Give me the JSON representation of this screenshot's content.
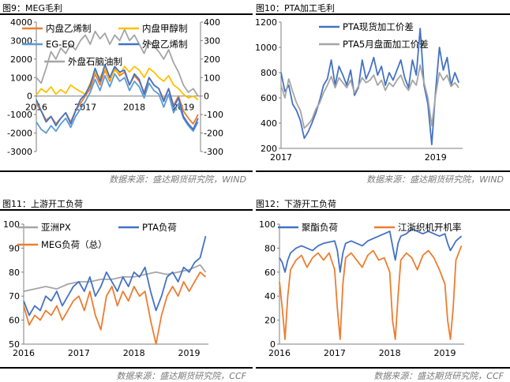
{
  "panels": [
    {
      "title": "图9：MEG毛利",
      "source": "数据来源：盛达期货研究院，WIND"
    },
    {
      "title": "图10：PTA加工毛利",
      "source": "数据来源：盛达期货研究院，WIND"
    },
    {
      "title": "图11：上游开工负荷",
      "source": "数据来源：盛达期货研究院，CCF"
    },
    {
      "title": "图12：下游开工负荷",
      "source": "数据来源：盛达期货研究院，CCF"
    }
  ],
  "chart_data": [
    {
      "type": "line",
      "title": "图9：MEG毛利",
      "xticks": [
        "2016",
        "2017",
        "2018",
        "2019"
      ],
      "xlim": [
        2016.0,
        2019.35
      ],
      "ylim_left": [
        -3000,
        4000
      ],
      "yticks_left": [
        -3000,
        -2000,
        -1000,
        0,
        1000,
        2000,
        3000,
        4000
      ],
      "ylim_right": [
        -300,
        400
      ],
      "yticks_right": [
        -300,
        -200,
        -100,
        0,
        100,
        200,
        300,
        400
      ],
      "legend": "top",
      "series": [
        {
          "name": "内盘乙烯制",
          "axis": "left",
          "color": "#ED7D31",
          "x": [
            2016.0,
            2016.1,
            2016.2,
            2016.3,
            2016.4,
            2016.5,
            2016.6,
            2016.7,
            2016.8,
            2016.9,
            2017.0,
            2017.1,
            2017.2,
            2017.3,
            2017.4,
            2017.5,
            2017.6,
            2017.7,
            2017.8,
            2017.9,
            2018.0,
            2018.1,
            2018.2,
            2018.3,
            2018.4,
            2018.5,
            2018.6,
            2018.7,
            2018.8,
            2018.9,
            2019.0,
            2019.1,
            2019.2,
            2019.3
          ],
          "y": [
            -400,
            -800,
            -1300,
            -1100,
            -1500,
            -1200,
            -900,
            -1400,
            -800,
            -400,
            0,
            400,
            1200,
            600,
            1400,
            800,
            1500,
            1100,
            1300,
            600,
            1100,
            800,
            200,
            1000,
            600,
            400,
            -200,
            400,
            -500,
            0,
            -800,
            -1200,
            -1500,
            -1000
          ]
        },
        {
          "name": "内盘甲醇制",
          "axis": "right",
          "color": "#FFC000",
          "x": [
            2016.0,
            2016.1,
            2016.2,
            2016.3,
            2016.4,
            2016.5,
            2016.6,
            2016.7,
            2016.8,
            2016.9,
            2017.0,
            2017.1,
            2017.2,
            2017.3,
            2017.4,
            2017.5,
            2017.6,
            2017.7,
            2017.8,
            2017.9,
            2018.0,
            2018.1,
            2018.2,
            2018.3,
            2018.4,
            2018.5,
            2018.6,
            2018.7,
            2018.8,
            2018.9,
            2019.0,
            2019.1,
            2019.2,
            2019.3
          ],
          "y": [
            5,
            40,
            20,
            50,
            10,
            35,
            15,
            60,
            40,
            25,
            10,
            70,
            130,
            100,
            150,
            90,
            140,
            120,
            160,
            130,
            160,
            140,
            100,
            150,
            130,
            100,
            80,
            110,
            60,
            40,
            10,
            -10,
            0,
            -20
          ]
        },
        {
          "name": "EG-EO",
          "axis": "left",
          "color": "#5B9BD5",
          "x": [
            2016.0,
            2016.1,
            2016.2,
            2016.3,
            2016.4,
            2016.5,
            2016.6,
            2016.7,
            2016.8,
            2016.9,
            2017.0,
            2017.1,
            2017.2,
            2017.3,
            2017.4,
            2017.5,
            2017.6,
            2017.7,
            2017.8,
            2017.9,
            2018.0,
            2018.1,
            2018.2,
            2018.3,
            2018.4,
            2018.5,
            2018.6,
            2018.7,
            2018.8,
            2018.9,
            2019.0,
            2019.1,
            2019.2,
            2019.3
          ],
          "y": [
            -1400,
            -1800,
            -2000,
            -1600,
            -1900,
            -1500,
            -1200,
            -1700,
            -1100,
            -700,
            -300,
            200,
            900,
            300,
            1100,
            500,
            1200,
            800,
            1000,
            300,
            800,
            500,
            -100,
            700,
            300,
            100,
            -600,
            100,
            -900,
            -400,
            -1200,
            -1600,
            -1900,
            -1400
          ]
        },
        {
          "name": "外盘乙烯制",
          "axis": "right",
          "color": "#4472C4",
          "x": [
            2016.0,
            2016.1,
            2016.2,
            2016.3,
            2016.4,
            2016.5,
            2016.6,
            2016.7,
            2016.8,
            2016.9,
            2017.0,
            2017.1,
            2017.2,
            2017.3,
            2017.4,
            2017.5,
            2017.6,
            2017.7,
            2017.8,
            2017.9,
            2018.0,
            2018.1,
            2018.2,
            2018.3,
            2018.4,
            2018.5,
            2018.6,
            2018.7,
            2018.8,
            2018.9,
            2019.0,
            2019.1,
            2019.2,
            2019.3
          ],
          "y": [
            -20,
            -80,
            -140,
            -110,
            -160,
            -120,
            -90,
            -150,
            -80,
            -20,
            10,
            60,
            150,
            80,
            170,
            100,
            160,
            130,
            140,
            60,
            120,
            90,
            10,
            100,
            60,
            40,
            -30,
            40,
            -60,
            -10,
            -110,
            -150,
            -180,
            -120
          ]
        },
        {
          "name": "外盘石脑油制",
          "axis": "right",
          "color": "#A5A5A5",
          "x": [
            2016.0,
            2016.1,
            2016.2,
            2016.3,
            2016.4,
            2016.5,
            2016.6,
            2016.7,
            2016.8,
            2016.9,
            2017.0,
            2017.1,
            2017.2,
            2017.3,
            2017.4,
            2017.5,
            2017.6,
            2017.7,
            2017.8,
            2017.9,
            2018.0,
            2018.1,
            2018.2,
            2018.3,
            2018.4,
            2018.5,
            2018.6,
            2018.7,
            2018.8,
            2018.9,
            2019.0,
            2019.1,
            2019.2,
            2019.3
          ],
          "y": [
            100,
            70,
            150,
            240,
            200,
            260,
            230,
            280,
            250,
            300,
            330,
            280,
            350,
            310,
            340,
            280,
            330,
            300,
            360,
            300,
            330,
            280,
            230,
            300,
            270,
            240,
            200,
            250,
            180,
            130,
            60,
            20,
            40,
            0
          ]
        }
      ]
    },
    {
      "type": "line",
      "title": "图10：PTA加工毛利",
      "xticks": [
        "2017",
        "2019"
      ],
      "xlim": [
        2017.0,
        2019.35
      ],
      "ylim": [
        200,
        1200
      ],
      "yticks": [
        200,
        400,
        600,
        800,
        1000,
        1200
      ],
      "legend": "top",
      "series": [
        {
          "name": "PTA现货加工价差",
          "color": "#4472C4",
          "x": [
            2017.0,
            2017.05,
            2017.1,
            2017.15,
            2017.2,
            2017.25,
            2017.3,
            2017.35,
            2017.4,
            2017.45,
            2017.5,
            2017.55,
            2017.6,
            2017.65,
            2017.7,
            2017.75,
            2017.8,
            2017.85,
            2017.9,
            2017.95,
            2018.0,
            2018.05,
            2018.1,
            2018.15,
            2018.2,
            2018.25,
            2018.3,
            2018.35,
            2018.4,
            2018.45,
            2018.5,
            2018.55,
            2018.6,
            2018.65,
            2018.7,
            2018.75,
            2018.8,
            2018.85,
            2018.9,
            2018.95,
            2019.0,
            2019.05,
            2019.1,
            2019.15,
            2019.2,
            2019.25,
            2019.3
          ],
          "y": [
            800,
            650,
            700,
            550,
            500,
            420,
            280,
            330,
            400,
            480,
            580,
            700,
            750,
            900,
            700,
            850,
            780,
            700,
            820,
            620,
            680,
            900,
            750,
            820,
            920,
            780,
            850,
            700,
            800,
            740,
            820,
            900,
            760,
            680,
            900,
            780,
            1150,
            700,
            550,
            230,
            650,
            1000,
            820,
            920,
            700,
            800,
            720
          ]
        },
        {
          "name": "PTA5月盘面加工价差",
          "color": "#A5A5A5",
          "x": [
            2017.0,
            2017.05,
            2017.1,
            2017.15,
            2017.2,
            2017.25,
            2017.3,
            2017.35,
            2017.4,
            2017.45,
            2017.5,
            2017.55,
            2017.6,
            2017.65,
            2017.7,
            2017.75,
            2017.8,
            2017.85,
            2017.9,
            2017.95,
            2018.0,
            2018.05,
            2018.1,
            2018.15,
            2018.2,
            2018.25,
            2018.3,
            2018.35,
            2018.4,
            2018.45,
            2018.5,
            2018.55,
            2018.6,
            2018.65,
            2018.7,
            2018.75,
            2018.8,
            2018.85,
            2018.9,
            2018.95,
            2019.0,
            2019.05,
            2019.1,
            2019.15,
            2019.2,
            2019.25,
            2019.3
          ],
          "y": [
            700,
            600,
            750,
            650,
            560,
            500,
            360,
            390,
            430,
            510,
            560,
            640,
            700,
            770,
            680,
            760,
            720,
            680,
            740,
            640,
            690,
            760,
            720,
            740,
            780,
            700,
            740,
            660,
            720,
            690,
            740,
            780,
            700,
            660,
            740,
            700,
            860,
            720,
            600,
            380,
            620,
            800,
            740,
            780,
            690,
            720,
            680
          ]
        }
      ]
    },
    {
      "type": "line",
      "title": "图11：上游开工负荷",
      "xticks": [
        "2016",
        "2017",
        "2018",
        "2019"
      ],
      "xlim": [
        2016.0,
        2019.35
      ],
      "ylim": [
        50,
        100
      ],
      "yticks": [
        50,
        60,
        70,
        80,
        90,
        100
      ],
      "legend": "top",
      "series": [
        {
          "name": "亚洲PX",
          "color": "#A5A5A5",
          "x": [
            2016.0,
            2016.2,
            2016.4,
            2016.6,
            2016.8,
            2017.0,
            2017.2,
            2017.4,
            2017.6,
            2017.8,
            2018.0,
            2018.2,
            2018.4,
            2018.6,
            2018.8,
            2019.0,
            2019.1,
            2019.2,
            2019.3
          ],
          "y": [
            72,
            73,
            74,
            73,
            75,
            76,
            76,
            77,
            77,
            78,
            78,
            79,
            80,
            79,
            80,
            81,
            82,
            83,
            80
          ]
        },
        {
          "name": "PTA负荷",
          "color": "#4472C4",
          "x": [
            2016.0,
            2016.1,
            2016.2,
            2016.3,
            2016.4,
            2016.5,
            2016.6,
            2016.7,
            2016.8,
            2016.9,
            2017.0,
            2017.1,
            2017.2,
            2017.3,
            2017.4,
            2017.5,
            2017.6,
            2017.7,
            2017.8,
            2017.9,
            2018.0,
            2018.1,
            2018.2,
            2018.3,
            2018.4,
            2018.5,
            2018.6,
            2018.7,
            2018.8,
            2018.9,
            2019.0,
            2019.1,
            2019.2,
            2019.3
          ],
          "y": [
            68,
            62,
            66,
            64,
            70,
            68,
            72,
            66,
            70,
            74,
            76,
            72,
            78,
            70,
            74,
            80,
            76,
            72,
            78,
            74,
            80,
            78,
            82,
            72,
            64,
            70,
            78,
            80,
            76,
            82,
            80,
            84,
            86,
            95
          ]
        },
        {
          "name": "MEG负荷（总）",
          "color": "#ED7D31",
          "x": [
            2016.0,
            2016.1,
            2016.2,
            2016.3,
            2016.4,
            2016.5,
            2016.6,
            2016.7,
            2016.8,
            2016.9,
            2017.0,
            2017.1,
            2017.2,
            2017.3,
            2017.4,
            2017.5,
            2017.6,
            2017.7,
            2017.8,
            2017.9,
            2018.0,
            2018.1,
            2018.2,
            2018.3,
            2018.4,
            2018.5,
            2018.6,
            2018.7,
            2018.8,
            2018.9,
            2019.0,
            2019.1,
            2019.2,
            2019.3
          ],
          "y": [
            66,
            58,
            62,
            60,
            64,
            62,
            66,
            60,
            64,
            68,
            70,
            64,
            72,
            62,
            56,
            70,
            74,
            66,
            72,
            68,
            74,
            70,
            72,
            60,
            50,
            62,
            70,
            74,
            70,
            76,
            72,
            76,
            80,
            78
          ]
        }
      ]
    },
    {
      "type": "line",
      "title": "图12：下游开工负荷",
      "xticks": [
        "2016",
        "2017",
        "2018",
        "2019"
      ],
      "xlim": [
        2016.0,
        2019.35
      ],
      "ylim": [
        0,
        100
      ],
      "yticks": [
        0,
        20,
        40,
        60,
        80,
        100
      ],
      "legend": "top",
      "series": [
        {
          "name": "聚酯负荷",
          "color": "#4472C4",
          "x": [
            2016.0,
            2016.05,
            2016.1,
            2016.15,
            2016.2,
            2016.3,
            2016.4,
            2016.5,
            2016.6,
            2016.7,
            2016.8,
            2016.9,
            2017.0,
            2017.05,
            2017.1,
            2017.15,
            2017.2,
            2017.3,
            2017.4,
            2017.5,
            2017.6,
            2017.7,
            2017.8,
            2017.9,
            2018.0,
            2018.05,
            2018.1,
            2018.15,
            2018.2,
            2018.3,
            2018.4,
            2018.5,
            2018.6,
            2018.7,
            2018.8,
            2018.9,
            2019.0,
            2019.05,
            2019.1,
            2019.15,
            2019.2,
            2019.3
          ],
          "y": [
            72,
            68,
            60,
            70,
            76,
            80,
            82,
            80,
            78,
            82,
            84,
            85,
            86,
            78,
            60,
            76,
            84,
            86,
            84,
            82,
            86,
            88,
            90,
            92,
            94,
            82,
            70,
            84,
            90,
            92,
            96,
            94,
            92,
            94,
            92,
            90,
            92,
            84,
            78,
            82,
            86,
            90
          ]
        },
        {
          "name": "江浙织机开机率",
          "color": "#ED7D31",
          "x": [
            2016.0,
            2016.05,
            2016.1,
            2016.15,
            2016.2,
            2016.3,
            2016.4,
            2016.5,
            2016.6,
            2016.7,
            2016.8,
            2016.9,
            2017.0,
            2017.05,
            2017.1,
            2017.15,
            2017.2,
            2017.3,
            2017.4,
            2017.5,
            2017.6,
            2017.7,
            2017.8,
            2017.9,
            2018.0,
            2018.05,
            2018.1,
            2018.15,
            2018.2,
            2018.3,
            2018.4,
            2018.5,
            2018.6,
            2018.7,
            2018.8,
            2018.9,
            2019.0,
            2019.05,
            2019.1,
            2019.15,
            2019.2,
            2019.3
          ],
          "y": [
            52,
            30,
            4,
            40,
            62,
            70,
            74,
            64,
            72,
            76,
            70,
            76,
            62,
            30,
            4,
            50,
            72,
            76,
            70,
            64,
            74,
            78,
            70,
            72,
            60,
            20,
            4,
            40,
            70,
            76,
            72,
            62,
            74,
            78,
            72,
            62,
            50,
            20,
            4,
            30,
            70,
            82
          ]
        }
      ]
    }
  ]
}
